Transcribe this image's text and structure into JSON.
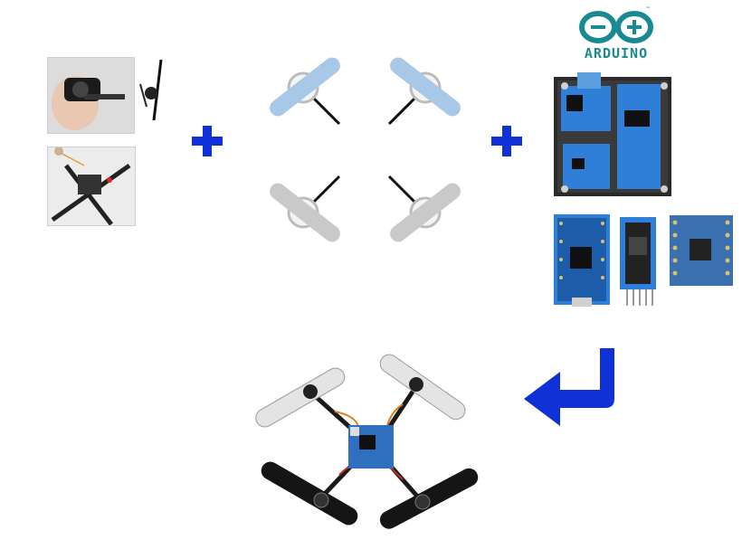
{
  "brand": {
    "logo_text": "ARDUINO",
    "trademark": "™",
    "logo_color": "#1a8a92"
  },
  "colors": {
    "plus": "#1030d8",
    "arrow": "#1030d8",
    "board_blue": "#2f7fd8",
    "prop_blue": "#a8c8e8",
    "prop_grey": "#c9c9c9"
  },
  "icons": [
    "plus-icon",
    "plus-icon",
    "return-arrow-icon",
    "arduino-logo"
  ]
}
